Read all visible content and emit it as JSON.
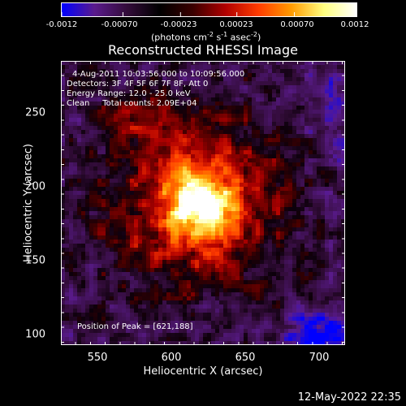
{
  "colorbar": {
    "ticks": [
      "-0.0012",
      "-0.00070",
      "-0.00023",
      "0.00023",
      "0.00070",
      "0.0012"
    ],
    "tick_values": [
      -0.0012,
      -0.0007,
      -0.00023,
      0.00023,
      0.0007,
      0.0012
    ],
    "unit_prefix": "(photons cm",
    "unit_exp1": "-2",
    "unit_mid": " s",
    "unit_exp2": "-1",
    "unit_suffix": " asec",
    "unit_exp3": "-2",
    "unit_close": ")",
    "colors": [
      "#0000ff",
      "#5a1b8c",
      "#330c3a",
      "#000000",
      "#3a0000",
      "#b00000",
      "#ff3b00",
      "#ff9a00",
      "#ffff80",
      "#ffffff"
    ]
  },
  "chart_data": {
    "type": "heatmap",
    "title": "Reconstructed RHESSI Image",
    "xlabel": "Heliocentric X (arcsec)",
    "ylabel": "Heliocentric Y (arcsec)",
    "xlim": [
      525,
      717
    ],
    "ylim": [
      93,
      285
    ],
    "xticks": [
      550,
      600,
      650,
      700
    ],
    "yticks": [
      100,
      150,
      200,
      250
    ],
    "xtick_labels": [
      "550",
      "600",
      "650",
      "700"
    ],
    "ytick_labels": [
      "100",
      "150",
      "200",
      "250"
    ],
    "peak": [
      621,
      188
    ],
    "annotations": {
      "time": "4-Aug-2011 10:03:56.000 to 10:09:56.000",
      "detectors": "Detectors: 3F 4F 5F 6F 7F 8F, Att 0",
      "energy": "Energy Range: 12.0 - 25.0 keV",
      "clean": "Clean     Total counts: 2.09E+04",
      "peak_label": "Position of Peak = [621,188]"
    },
    "grid": false
  },
  "footer": {
    "timestamp": "12-May-2022 22:35"
  }
}
